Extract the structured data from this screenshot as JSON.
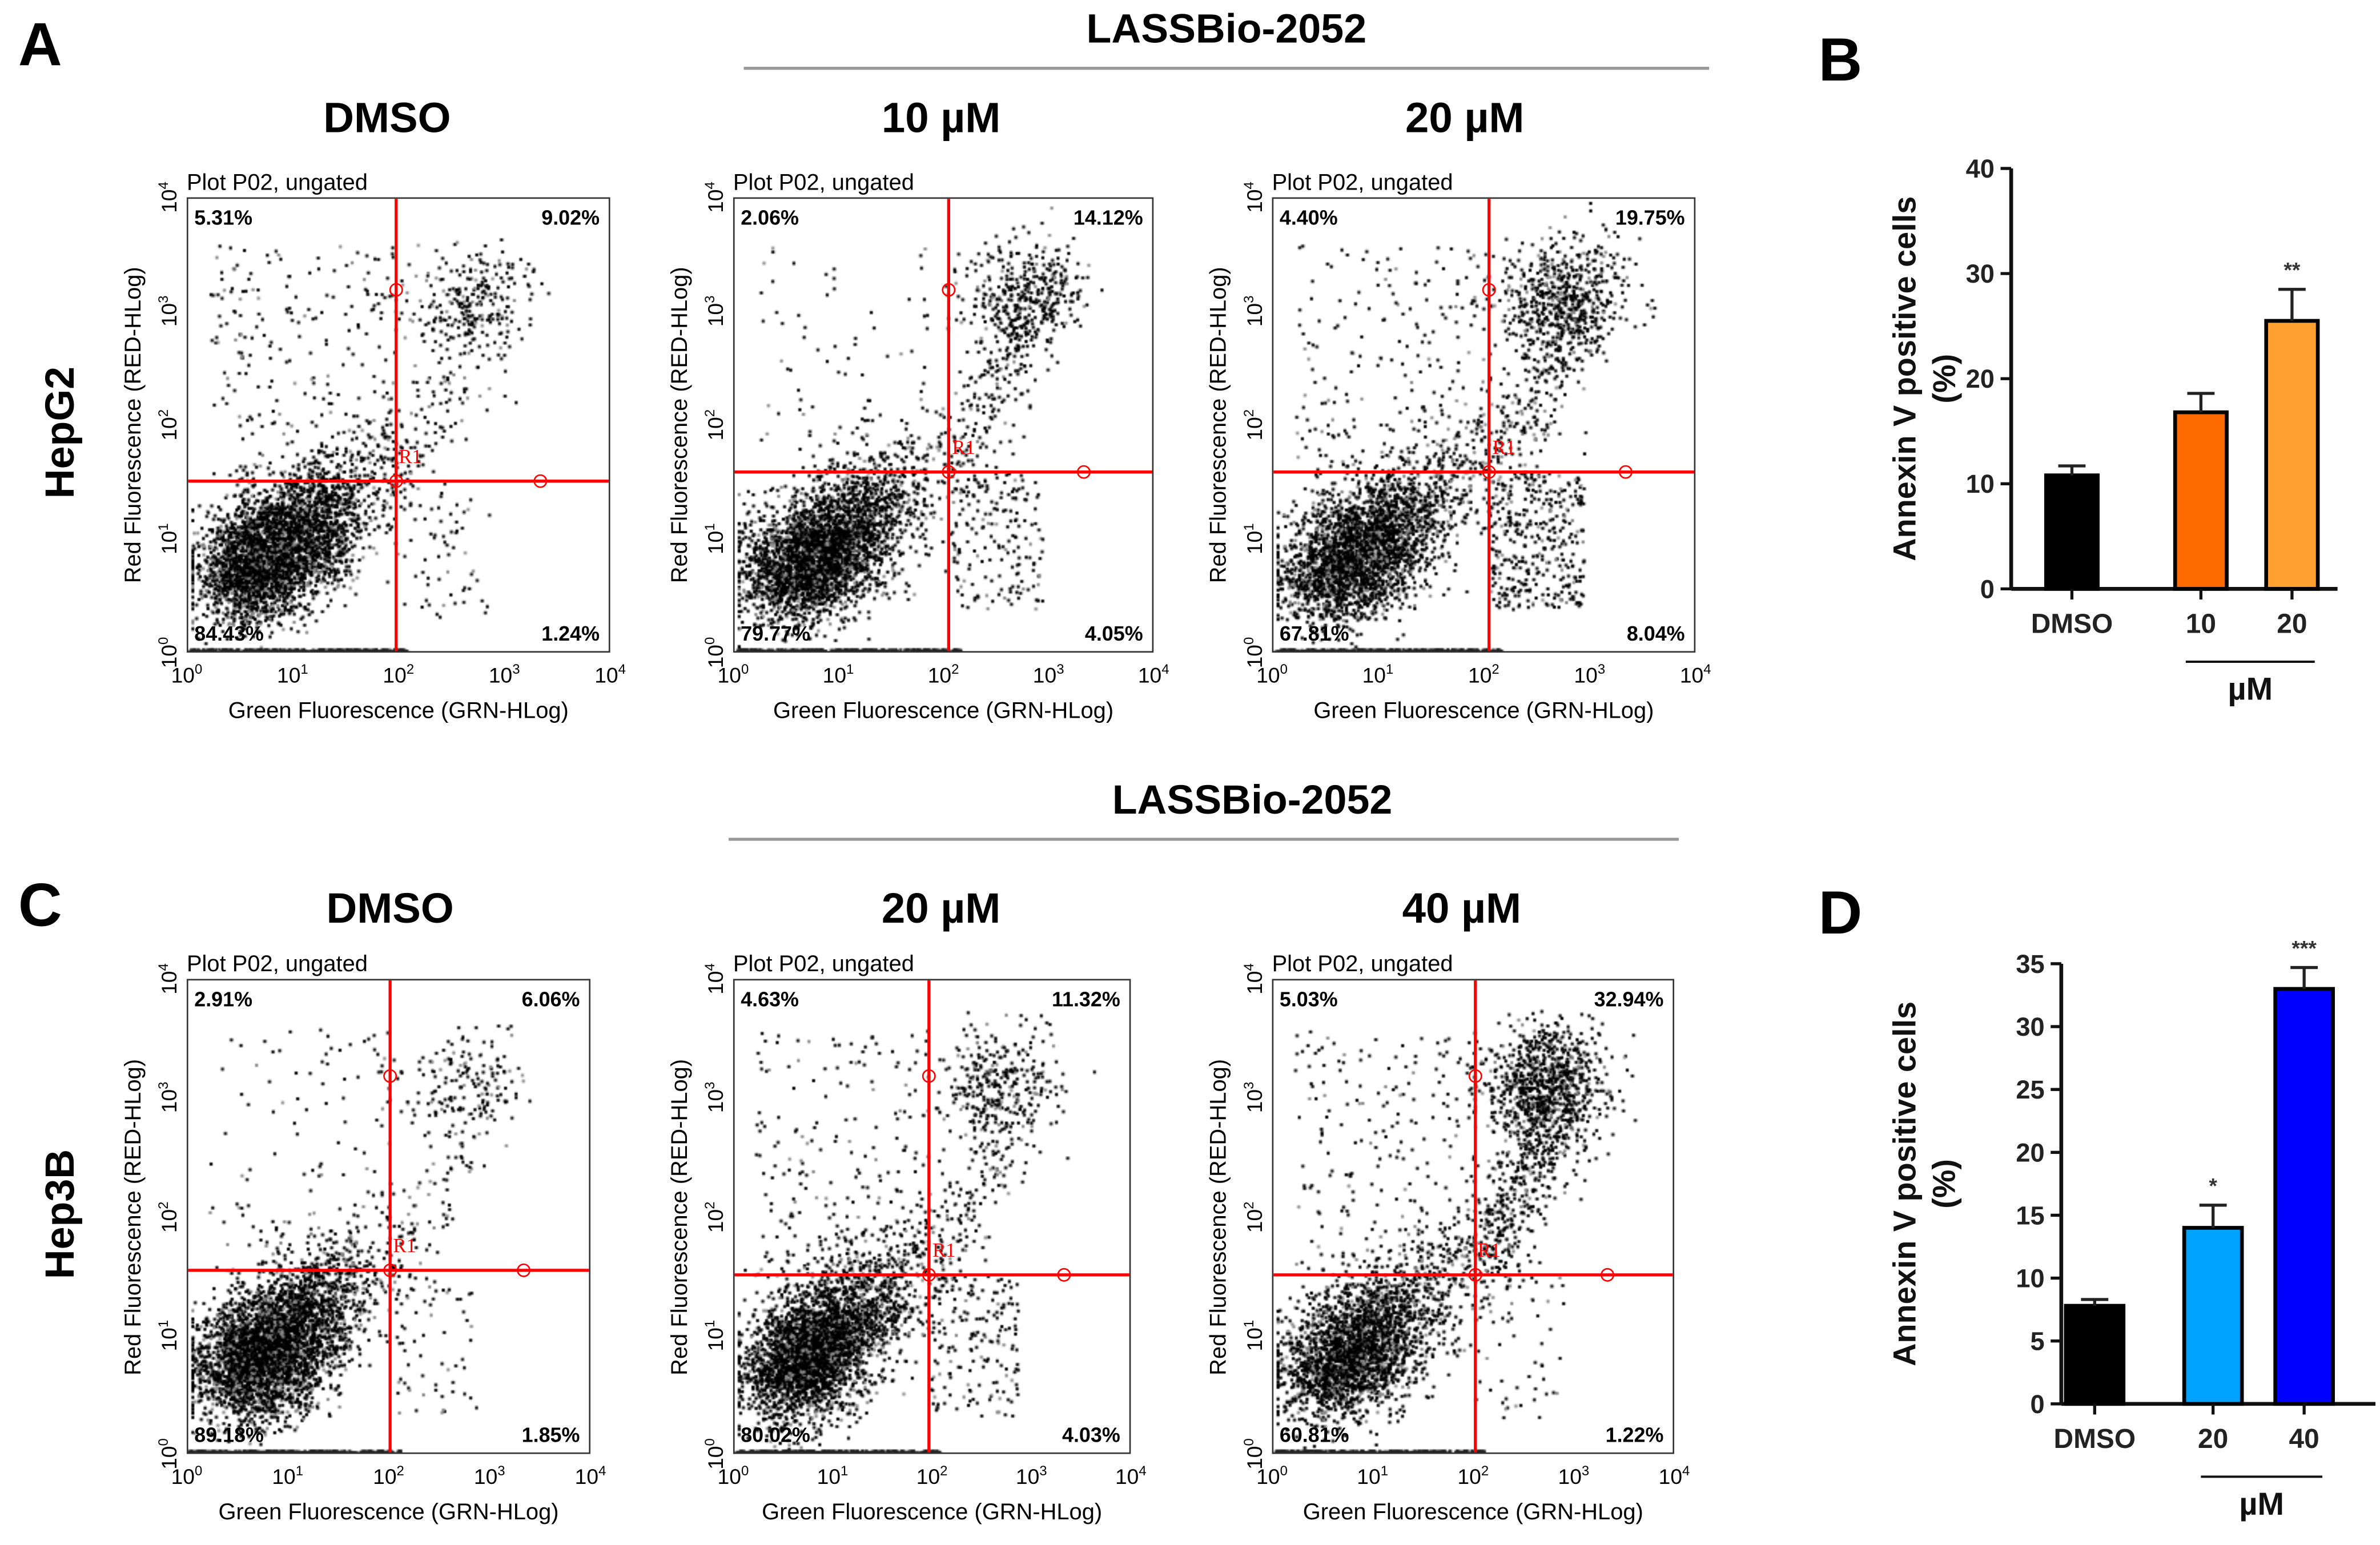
{
  "panels": {
    "A": {
      "letter": "A",
      "group_title": "LASSBio-2052",
      "cell_line": "HepG2",
      "plots": [
        {
          "condition": "DMSO",
          "title": "Plot P02, ungated",
          "quadrants": {
            "UL": "5.31%",
            "UR": "9.02%",
            "LL": "84.43%",
            "LR": "1.24%"
          }
        },
        {
          "condition": "10 µM",
          "title": "Plot P02, ungated",
          "quadrants": {
            "UL": "2.06%",
            "UR": "14.12%",
            "LL": "79.77%",
            "LR": "4.05%"
          }
        },
        {
          "condition": "20 µM",
          "title": "Plot P02, ungated",
          "quadrants": {
            "UL": "4.40%",
            "UR": "19.75%",
            "LL": "67.81%",
            "LR": "8.04%"
          }
        }
      ]
    },
    "C": {
      "letter": "C",
      "group_title": "LASSBio-2052",
      "cell_line": "Hep3B",
      "plots": [
        {
          "condition": "DMSO",
          "title": "Plot P02, ungated",
          "quadrants": {
            "UL": "2.91%",
            "UR": "6.06%",
            "LL": "89.18%",
            "LR": "1.85%"
          }
        },
        {
          "condition": "20 µM",
          "title": "Plot P02, ungated",
          "quadrants": {
            "UL": "4.63%",
            "UR": "11.32%",
            "LL": "80.02%",
            "LR": "4.03%"
          }
        },
        {
          "condition": "40 µM",
          "title": "Plot P02, ungated",
          "quadrants": {
            "UL": "5.03%",
            "UR": "32.94%",
            "LL": "60.81%",
            "LR": "1.22%"
          }
        }
      ]
    }
  },
  "flow_axes": {
    "x_label": "Green Fluorescence (GRN-HLog)",
    "y_label": "Red Fluorescence (RED-HLog)",
    "tick_base": "10",
    "tick_exponents": [
      "0",
      "1",
      "2",
      "3",
      "4"
    ],
    "gate_label": "R1"
  },
  "chart_data": [
    {
      "type": "bar",
      "panel": "B",
      "letter": "B",
      "categories": [
        "DMSO",
        "10",
        "20"
      ],
      "values": [
        10.8,
        16.8,
        25.5
      ],
      "errors": [
        0.9,
        1.8,
        3.0
      ],
      "significance": [
        "",
        "",
        "**"
      ],
      "colors": [
        "#000000",
        "#ff6a00",
        "#ffa030"
      ],
      "ylabel": "Annexin V positive cells",
      "ylabel2": "(%)",
      "unit_label": "µM",
      "ylim": [
        0,
        40
      ],
      "yticks": [
        0,
        10,
        20,
        30,
        40
      ]
    },
    {
      "type": "bar",
      "panel": "D",
      "letter": "D",
      "categories": [
        "DMSO",
        "20",
        "40"
      ],
      "values": [
        7.8,
        14.0,
        33.0
      ],
      "errors": [
        0.5,
        1.8,
        1.7
      ],
      "significance": [
        "",
        "*",
        "***"
      ],
      "colors": [
        "#000000",
        "#00a2ff",
        "#0000ff"
      ],
      "ylabel": "Annexin V positive cells",
      "ylabel2": "(%)",
      "unit_label": "µM",
      "ylim": [
        0,
        35
      ],
      "yticks": [
        0,
        5,
        10,
        15,
        20,
        25,
        30,
        35
      ]
    }
  ]
}
